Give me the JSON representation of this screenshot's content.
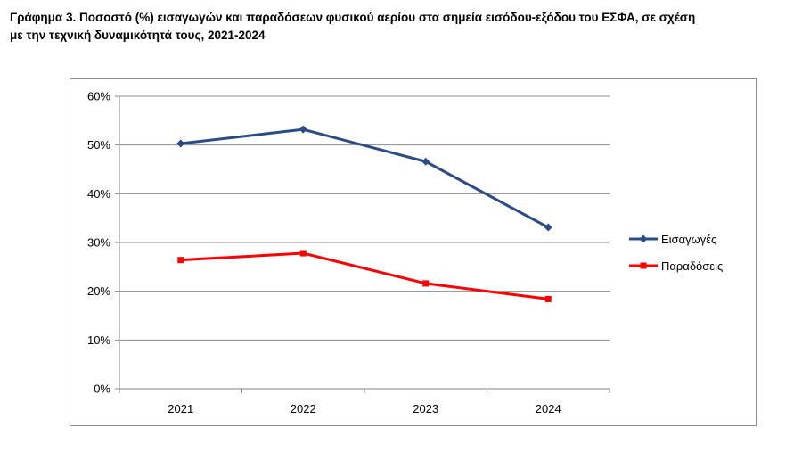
{
  "title": {
    "line1": "Γράφημα 3. Ποσοστό (%) εισαγωγών και παραδόσεων φυσικού αερίου στα σημεία εισόδου-εξόδου του ΕΣΦΑ, σε σχέση",
    "line2": "με την τεχνική δυναμικότητά τους, 2021-2024"
  },
  "chart_data": {
    "type": "line",
    "categories": [
      "2021",
      "2022",
      "2023",
      "2024"
    ],
    "series": [
      {
        "name": "Εισαγωγές",
        "values": [
          50.3,
          53.2,
          46.6,
          33.1
        ],
        "color": "#2b4b87",
        "marker": "diamond"
      },
      {
        "name": "Παραδόσεις",
        "values": [
          26.4,
          27.8,
          21.6,
          18.4
        ],
        "color": "#ff0000",
        "marker": "square"
      }
    ],
    "ylim": [
      0,
      60
    ],
    "yticks": [
      0,
      10,
      20,
      30,
      40,
      50,
      60
    ],
    "ytick_labels": [
      "0%",
      "10%",
      "20%",
      "30%",
      "40%",
      "50%",
      "60%"
    ],
    "grid": true,
    "legend_position": "right"
  }
}
